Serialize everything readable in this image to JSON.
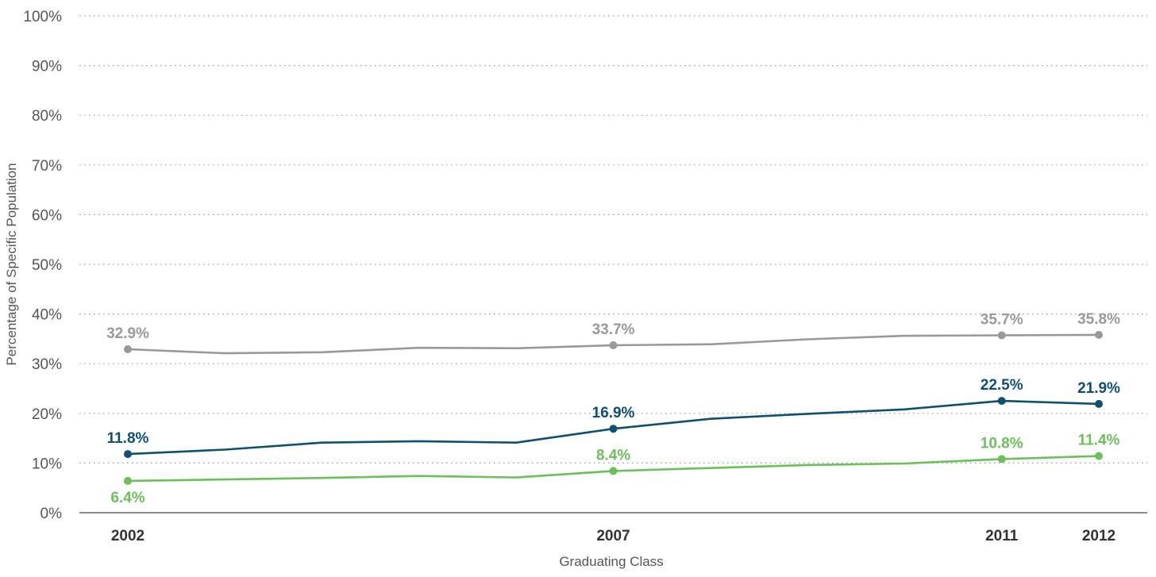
{
  "chart_data": {
    "type": "line",
    "title": "",
    "xlabel": "Graduating Class",
    "ylabel": "Percentage of Specific Population",
    "ylim": [
      0,
      100
    ],
    "yticks": [
      "0%",
      "10%",
      "20%",
      "30%",
      "40%",
      "50%",
      "60%",
      "70%",
      "80%",
      "90%",
      "100%"
    ],
    "ytick_values": [
      0,
      10,
      20,
      30,
      40,
      50,
      60,
      70,
      80,
      90,
      100
    ],
    "x": [
      2002,
      2003,
      2004,
      2005,
      2006,
      2007,
      2008,
      2009,
      2010,
      2011,
      2012
    ],
    "xticks": [
      "2002",
      "2007",
      "2011",
      "2012"
    ],
    "xtick_values": [
      2002,
      2007,
      2011,
      2012
    ],
    "grid": "horizontal-dotted",
    "legend": "none",
    "series": [
      {
        "color": "#999999",
        "values": [
          32.9,
          32.1,
          32.3,
          33.2,
          33.1,
          33.7,
          33.9,
          34.9,
          35.6,
          35.7,
          35.8
        ],
        "labels": {
          "2002": "32.9%",
          "2007": "33.7%",
          "2011": "35.7%",
          "2012": "35.8%"
        },
        "label_position": "above"
      },
      {
        "color": "#0e4f72",
        "values": [
          11.8,
          12.7,
          14.1,
          14.4,
          14.1,
          16.9,
          18.9,
          19.9,
          20.8,
          22.5,
          21.9
        ],
        "labels": {
          "2002": "11.8%",
          "2007": "16.9%",
          "2011": "22.5%",
          "2012": "21.9%"
        },
        "label_position": "above"
      },
      {
        "color": "#6cbf5a",
        "values": [
          6.4,
          6.7,
          7.0,
          7.4,
          7.1,
          8.4,
          9.0,
          9.6,
          9.9,
          10.8,
          11.4
        ],
        "labels": {
          "2002": "6.4%",
          "2007": "8.4%",
          "2011": "10.8%",
          "2012": "11.4%"
        },
        "label_position": {
          "2002": "below",
          "2007": "above",
          "2011": "above",
          "2012": "above"
        }
      }
    ]
  }
}
